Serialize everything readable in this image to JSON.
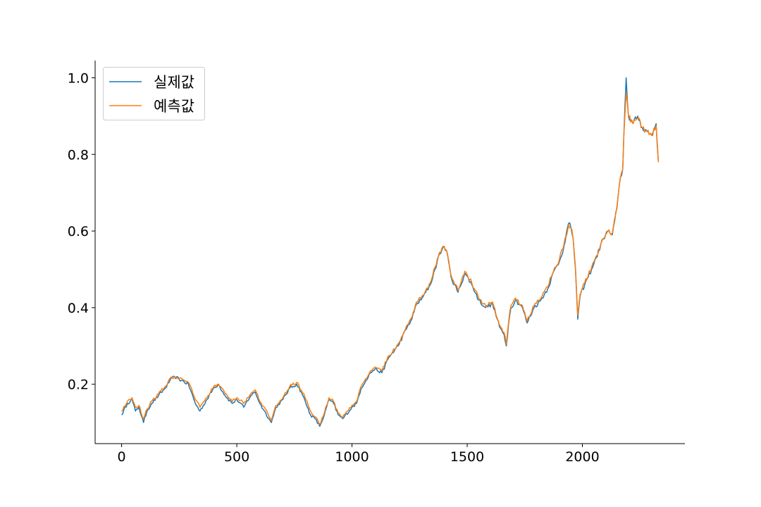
{
  "chart_data": {
    "type": "line",
    "title": "",
    "xlabel": "",
    "ylabel": "",
    "xlim": [
      -115,
      2445
    ],
    "ylim": [
      0.045,
      1.045
    ],
    "xticks": [
      0,
      500,
      1000,
      1500,
      2000
    ],
    "yticks": [
      0.2,
      0.4,
      0.6,
      0.8,
      1.0
    ],
    "xtick_labels": [
      "0",
      "500",
      "1000",
      "1500",
      "2000"
    ],
    "ytick_labels": [
      "0.2",
      "0.4",
      "0.6",
      "0.8",
      "1.0"
    ],
    "grid": false,
    "legend_position": "top-left",
    "series": [
      {
        "name": "실제값",
        "color": "#1f77b4",
        "x": [
          0,
          25,
          45,
          60,
          75,
          95,
          110,
          130,
          160,
          190,
          210,
          230,
          260,
          290,
          320,
          340,
          370,
          400,
          420,
          450,
          480,
          500,
          530,
          560,
          580,
          600,
          620,
          640,
          650,
          670,
          700,
          730,
          760,
          780,
          800,
          820,
          840,
          860,
          880,
          900,
          920,
          940,
          960,
          1000,
          1020,
          1040,
          1060,
          1080,
          1100,
          1130,
          1160,
          1200,
          1240,
          1260,
          1280,
          1300,
          1320,
          1340,
          1360,
          1380,
          1400,
          1410,
          1430,
          1460,
          1490,
          1520,
          1550,
          1580,
          1610,
          1640,
          1660,
          1670,
          1680,
          1690,
          1710,
          1740,
          1760,
          1790,
          1820,
          1850,
          1880,
          1900,
          1920,
          1940,
          1950,
          1960,
          1970,
          1980,
          1990,
          2010,
          2040,
          2060,
          2090,
          2110,
          2130,
          2150,
          2165,
          2175,
          2180,
          2190,
          2200,
          2220,
          2240,
          2260,
          2280,
          2300,
          2320,
          2330
        ],
        "values": [
          0.12,
          0.15,
          0.16,
          0.13,
          0.14,
          0.1,
          0.13,
          0.15,
          0.17,
          0.19,
          0.21,
          0.22,
          0.21,
          0.2,
          0.15,
          0.13,
          0.16,
          0.19,
          0.2,
          0.17,
          0.15,
          0.16,
          0.14,
          0.17,
          0.18,
          0.15,
          0.13,
          0.11,
          0.1,
          0.14,
          0.16,
          0.19,
          0.2,
          0.18,
          0.15,
          0.12,
          0.11,
          0.09,
          0.12,
          0.16,
          0.15,
          0.12,
          0.11,
          0.14,
          0.15,
          0.19,
          0.21,
          0.23,
          0.24,
          0.23,
          0.27,
          0.3,
          0.35,
          0.37,
          0.41,
          0.42,
          0.44,
          0.46,
          0.5,
          0.54,
          0.56,
          0.55,
          0.48,
          0.44,
          0.49,
          0.46,
          0.42,
          0.4,
          0.41,
          0.35,
          0.33,
          0.3,
          0.36,
          0.4,
          0.42,
          0.4,
          0.36,
          0.4,
          0.42,
          0.45,
          0.5,
          0.52,
          0.56,
          0.62,
          0.61,
          0.58,
          0.5,
          0.37,
          0.43,
          0.46,
          0.5,
          0.53,
          0.58,
          0.6,
          0.59,
          0.66,
          0.74,
          0.76,
          0.85,
          1.0,
          0.9,
          0.88,
          0.9,
          0.87,
          0.86,
          0.85,
          0.88,
          0.78
        ]
      },
      {
        "name": "예측값",
        "color": "#ff7f0e",
        "x": [
          0,
          25,
          45,
          60,
          75,
          95,
          110,
          130,
          160,
          190,
          210,
          230,
          260,
          290,
          320,
          340,
          370,
          400,
          420,
          450,
          480,
          500,
          530,
          560,
          580,
          600,
          620,
          640,
          650,
          670,
          700,
          730,
          760,
          780,
          800,
          820,
          840,
          860,
          880,
          900,
          920,
          940,
          960,
          1000,
          1020,
          1040,
          1060,
          1080,
          1100,
          1130,
          1160,
          1200,
          1240,
          1260,
          1280,
          1300,
          1320,
          1340,
          1360,
          1380,
          1400,
          1410,
          1430,
          1460,
          1490,
          1520,
          1550,
          1580,
          1610,
          1640,
          1660,
          1670,
          1680,
          1690,
          1710,
          1740,
          1760,
          1790,
          1820,
          1850,
          1880,
          1900,
          1920,
          1940,
          1950,
          1960,
          1970,
          1980,
          1990,
          2010,
          2040,
          2060,
          2090,
          2110,
          2130,
          2150,
          2165,
          2175,
          2180,
          2190,
          2200,
          2220,
          2240,
          2260,
          2280,
          2300,
          2320,
          2330
        ],
        "values": [
          0.13,
          0.155,
          0.165,
          0.14,
          0.145,
          0.11,
          0.135,
          0.155,
          0.175,
          0.195,
          0.215,
          0.22,
          0.215,
          0.205,
          0.16,
          0.14,
          0.165,
          0.195,
          0.2,
          0.175,
          0.155,
          0.165,
          0.15,
          0.175,
          0.185,
          0.155,
          0.14,
          0.115,
          0.105,
          0.145,
          0.165,
          0.195,
          0.205,
          0.185,
          0.16,
          0.13,
          0.115,
          0.095,
          0.125,
          0.165,
          0.155,
          0.125,
          0.115,
          0.145,
          0.155,
          0.195,
          0.215,
          0.235,
          0.245,
          0.235,
          0.275,
          0.305,
          0.355,
          0.375,
          0.415,
          0.425,
          0.445,
          0.465,
          0.505,
          0.545,
          0.56,
          0.55,
          0.485,
          0.445,
          0.495,
          0.465,
          0.425,
          0.405,
          0.415,
          0.355,
          0.335,
          0.305,
          0.365,
          0.405,
          0.425,
          0.405,
          0.365,
          0.405,
          0.425,
          0.455,
          0.505,
          0.525,
          0.565,
          0.615,
          0.61,
          0.58,
          0.505,
          0.38,
          0.435,
          0.465,
          0.505,
          0.535,
          0.58,
          0.6,
          0.595,
          0.665,
          0.74,
          0.76,
          0.85,
          0.96,
          0.9,
          0.88,
          0.895,
          0.87,
          0.86,
          0.85,
          0.875,
          0.78
        ]
      }
    ]
  }
}
